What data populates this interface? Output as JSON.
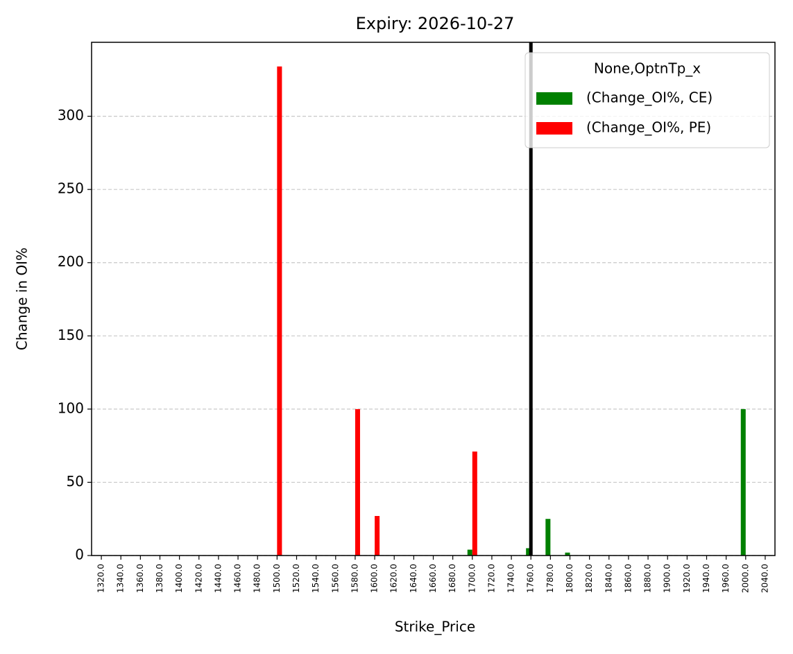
{
  "chart_data": {
    "type": "bar",
    "title": "Expiry: 2026-10-27",
    "x_label": "Strike_Price",
    "y_label": "Change in OI%",
    "categories": [
      "1320.0",
      "1340.0",
      "1360.0",
      "1380.0",
      "1400.0",
      "1420.0",
      "1440.0",
      "1460.0",
      "1480.0",
      "1500.0",
      "1520.0",
      "1540.0",
      "1560.0",
      "1580.0",
      "1600.0",
      "1620.0",
      "1640.0",
      "1660.0",
      "1680.0",
      "1700.0",
      "1720.0",
      "1740.0",
      "1760.0",
      "1780.0",
      "1800.0",
      "1820.0",
      "1840.0",
      "1860.0",
      "1880.0",
      "1900.0",
      "1920.0",
      "1940.0",
      "1960.0",
      "2000.0",
      "2040.0"
    ],
    "series": [
      {
        "name": "(Change_OI%, CE)",
        "color": "#008000",
        "values": [
          0,
          0,
          0,
          0,
          0,
          0,
          0,
          0,
          0,
          0,
          0,
          0,
          0,
          0,
          0,
          0,
          0,
          0,
          0,
          4,
          0,
          0,
          5,
          25,
          2,
          0,
          0,
          0,
          0,
          0,
          0,
          0,
          0,
          100,
          0
        ]
      },
      {
        "name": "(Change_OI%, PE)",
        "color": "#ff0000",
        "values": [
          0,
          0,
          0,
          0,
          0,
          0,
          0,
          0,
          0,
          334,
          0,
          0,
          0,
          100,
          27,
          0,
          0,
          0,
          0,
          71,
          0,
          0,
          0,
          0,
          0,
          0,
          0,
          0,
          0,
          0,
          0,
          0,
          0,
          0,
          0
        ]
      }
    ],
    "legend_title": "None,OptnTp_x",
    "legend": "upper right",
    "vline": 1760,
    "vline_color": "#000000",
    "ylim": [
      0,
      350.5
    ],
    "yticks": [
      0,
      50,
      100,
      150,
      200,
      250,
      300
    ],
    "grid": true
  }
}
